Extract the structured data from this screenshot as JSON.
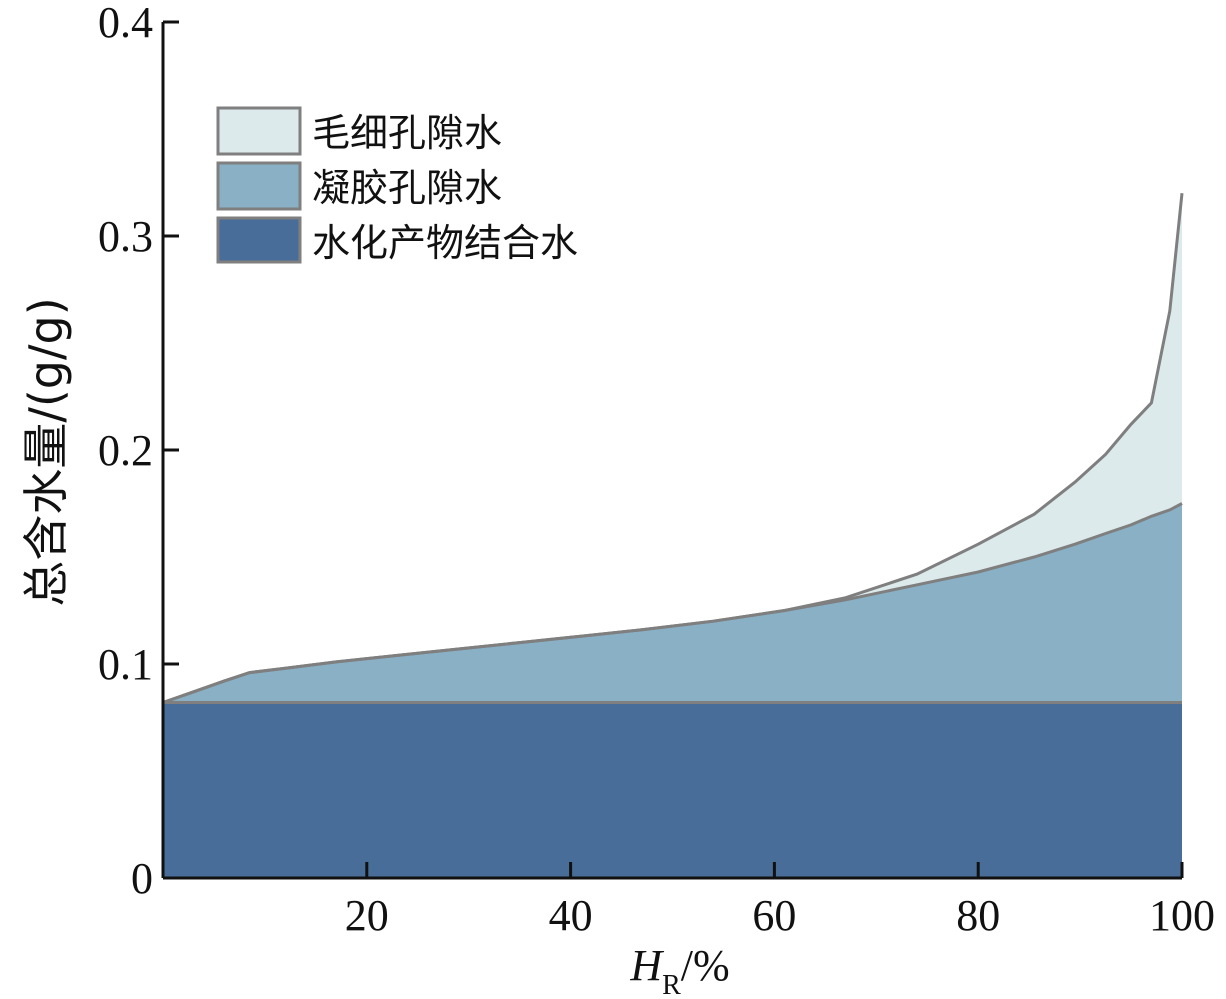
{
  "chart_data": {
    "type": "area",
    "stacked": true,
    "title": "",
    "xlabel": {
      "main": "H",
      "sub": "R",
      "suffix": "/%"
    },
    "ylabel": "总含水量/(g/g)",
    "xlim": [
      0,
      100
    ],
    "ylim": [
      0,
      0.4
    ],
    "xticks": [
      20,
      40,
      60,
      80,
      100
    ],
    "xtick_labels": [
      "20",
      "40",
      "60",
      "80",
      "100"
    ],
    "yticks": [
      0,
      0.1,
      0.2,
      0.3,
      0.4
    ],
    "ytick_labels": [
      "0",
      "0.1",
      "0.2",
      "0.3",
      "0.4"
    ],
    "grid": false,
    "legend_position": "top-left",
    "x": [
      0,
      3,
      6,
      8.5,
      12,
      17,
      23,
      29,
      35,
      41,
      47,
      54,
      61,
      67,
      74,
      80,
      85.5,
      89.5,
      92.5,
      95,
      97,
      98.8,
      100
    ],
    "series": [
      {
        "name": "水化产物结合水",
        "color": "#486d98",
        "values": [
          0.082,
          0.082,
          0.082,
          0.082,
          0.082,
          0.082,
          0.082,
          0.082,
          0.082,
          0.082,
          0.082,
          0.082,
          0.082,
          0.082,
          0.082,
          0.082,
          0.082,
          0.082,
          0.082,
          0.082,
          0.082,
          0.082,
          0.082
        ]
      },
      {
        "name": "凝胶孔隙水",
        "color": "#89b0c5",
        "cumulative": [
          0.082,
          0.087,
          0.092,
          0.096,
          0.098,
          0.101,
          0.104,
          0.107,
          0.11,
          0.113,
          0.116,
          0.12,
          0.125,
          0.13,
          0.137,
          0.143,
          0.15,
          0.156,
          0.161,
          0.165,
          0.169,
          0.172,
          0.175
        ]
      },
      {
        "name": "毛细孔隙水",
        "color": "#dceaec",
        "cumulative": [
          0.082,
          0.087,
          0.092,
          0.096,
          0.098,
          0.101,
          0.104,
          0.107,
          0.11,
          0.113,
          0.116,
          0.12,
          0.125,
          0.131,
          0.142,
          0.156,
          0.17,
          0.185,
          0.198,
          0.212,
          0.222,
          0.265,
          0.32
        ]
      }
    ]
  }
}
